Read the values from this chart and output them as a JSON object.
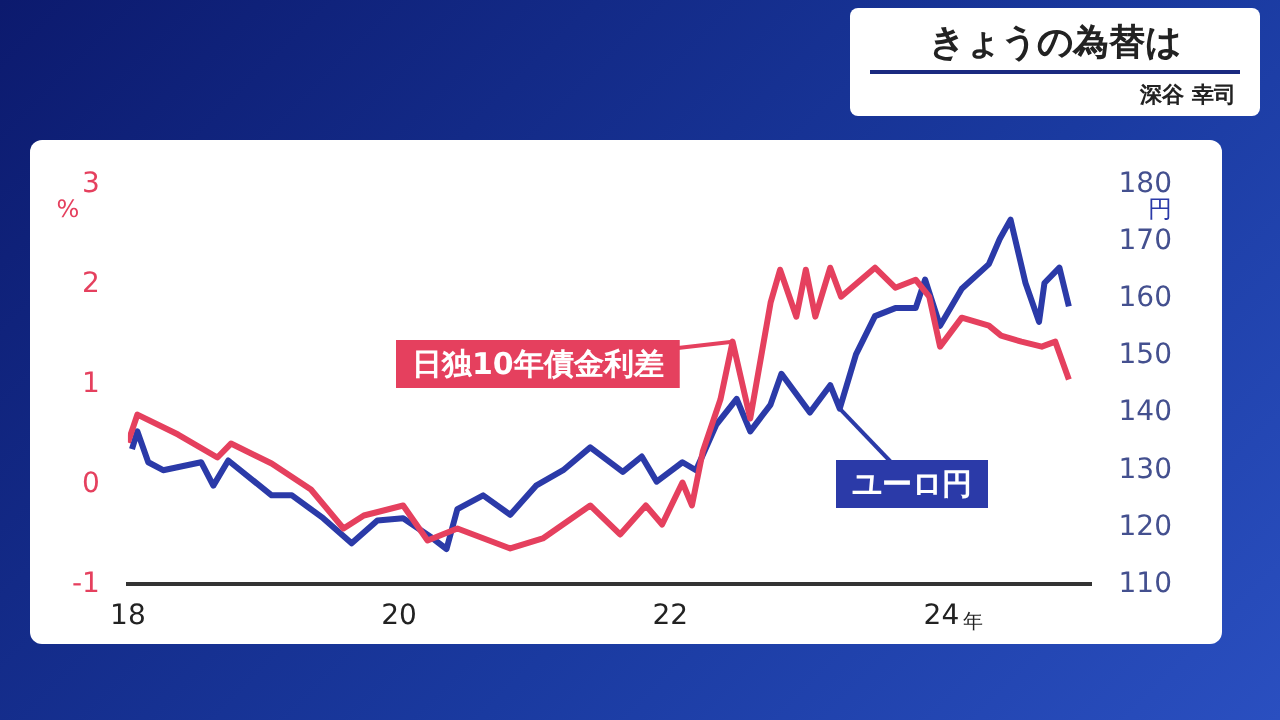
{
  "chart_data": {
    "type": "line",
    "title": "きょうの為替は",
    "subtitle": "深谷 幸司",
    "ylabel": "%",
    "y2label": "円",
    "xlim": [
      2018,
      2025.1
    ],
    "xticks": [
      {
        "value": 2018,
        "label": "18"
      },
      {
        "value": 2020,
        "label": "20"
      },
      {
        "value": 2022,
        "label": "22"
      },
      {
        "value": 2024,
        "label": "24"
      }
    ],
    "xlabel": "年",
    "ylim": [
      -1,
      3
    ],
    "yticks": [
      -1,
      0,
      1,
      2,
      3
    ],
    "y2lim": [
      110,
      180
    ],
    "y2ticks": [
      110,
      120,
      130,
      140,
      150,
      160,
      170,
      180
    ],
    "grid": false,
    "legend": false,
    "series": [
      {
        "name": "日独10年債金利差",
        "color": "#e5405e",
        "x": [
          2018.0,
          2018.07,
          2018.37,
          2018.66,
          2018.76,
          2019.06,
          2019.35,
          2019.59,
          2019.74,
          2020.03,
          2020.21,
          2020.43,
          2020.82,
          2021.06,
          2021.41,
          2021.63,
          2021.82,
          2021.94,
          2022.09,
          2022.16,
          2022.24,
          2022.37,
          2022.46,
          2022.59,
          2022.74,
          2022.81,
          2022.93,
          2023.0,
          2023.07,
          2023.18,
          2023.26,
          2023.51,
          2023.66,
          2023.81,
          2023.91,
          2023.99,
          2024.15,
          2024.35,
          2024.44,
          2024.59,
          2024.74,
          2024.84,
          2024.94
        ],
        "values": [
          0.42,
          0.7,
          0.5,
          0.27,
          0.41,
          0.21,
          -0.05,
          -0.44,
          -0.31,
          -0.21,
          -0.56,
          -0.44,
          -0.64,
          -0.54,
          -0.21,
          -0.5,
          -0.21,
          -0.4,
          0.02,
          -0.21,
          0.33,
          0.85,
          1.43,
          0.66,
          1.82,
          2.15,
          1.68,
          2.15,
          1.68,
          2.17,
          1.88,
          2.17,
          1.97,
          2.05,
          1.88,
          1.38,
          1.67,
          1.59,
          1.49,
          1.43,
          1.38,
          1.43,
          1.05
        ]
      },
      {
        "name": "ユーロ円",
        "color": "#2b3aa8",
        "axis": "y2",
        "x": [
          2018.03,
          2018.07,
          2018.15,
          2018.26,
          2018.54,
          2018.63,
          2018.74,
          2019.06,
          2019.21,
          2019.44,
          2019.65,
          2019.84,
          2020.03,
          2020.24,
          2020.35,
          2020.43,
          2020.62,
          2020.82,
          2021.01,
          2021.21,
          2021.41,
          2021.65,
          2021.79,
          2021.9,
          2022.09,
          2022.19,
          2022.34,
          2022.49,
          2022.59,
          2022.74,
          2022.82,
          2023.03,
          2023.18,
          2023.25,
          2023.37,
          2023.51,
          2023.66,
          2023.81,
          2023.88,
          2023.99,
          2024.15,
          2024.35,
          2024.43,
          2024.51,
          2024.62,
          2024.72,
          2024.76,
          2024.87,
          2024.94
        ],
        "values": [
          133.7,
          136.8,
          131.4,
          130,
          131.4,
          127.3,
          131.7,
          125.6,
          125.6,
          121.6,
          117.2,
          121.2,
          121.6,
          118.2,
          116.2,
          123.2,
          125.6,
          122.2,
          127.3,
          130,
          134,
          129.7,
          132.4,
          128,
          131.4,
          130,
          138,
          142.5,
          136.8,
          141.5,
          146.9,
          140.1,
          144.9,
          140.8,
          150.3,
          157,
          158.4,
          158.4,
          163.4,
          155.3,
          161.8,
          166.1,
          170.5,
          173.9,
          162.8,
          156,
          162.8,
          165.5,
          158.7
        ]
      }
    ]
  }
}
